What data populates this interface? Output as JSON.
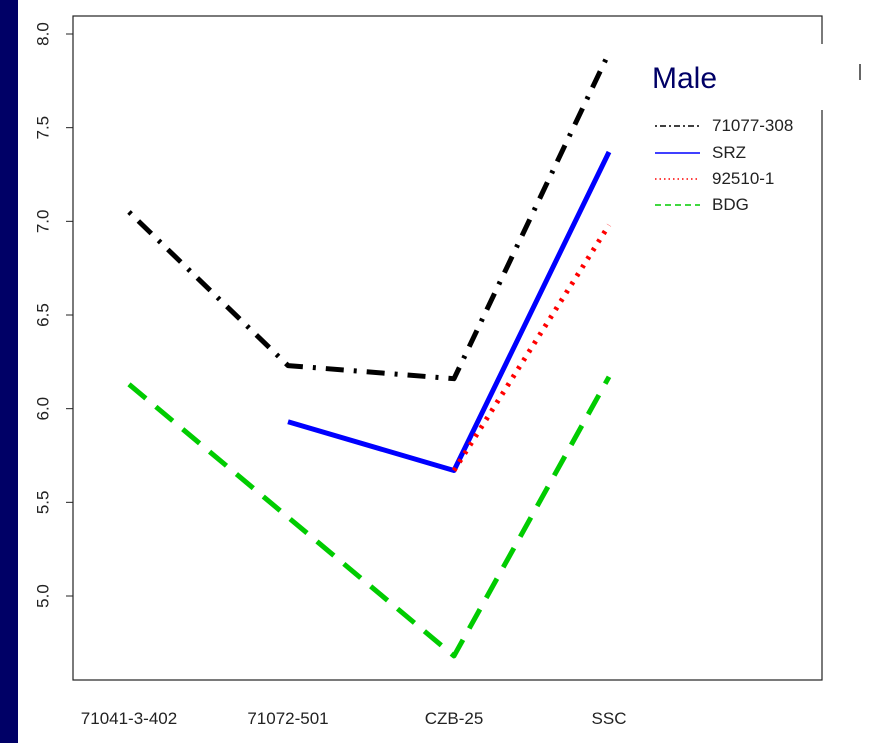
{
  "chart_data": {
    "type": "line",
    "title": "Male",
    "xlabel": "",
    "ylabel": "",
    "categories": [
      "71041-3-402",
      "71072-501",
      "CZB-25",
      "SSC"
    ],
    "y_ticks": [
      "5.0",
      "5.5",
      "6.0",
      "6.5",
      "7.0",
      "7.5",
      "8.0"
    ],
    "ylim": [
      4.6,
      8.05
    ],
    "grid": false,
    "legend_position": "top-right",
    "series": [
      {
        "name": "71077-308",
        "values": [
          7.05,
          6.23,
          6.16,
          7.9
        ],
        "color": "#000000",
        "dash": "dotdash"
      },
      {
        "name": "SRZ",
        "values": [
          null,
          5.93,
          5.67,
          7.37
        ],
        "color": "#0000ff",
        "dash": "solid"
      },
      {
        "name": "92510-1",
        "values": [
          null,
          null,
          5.67,
          6.98
        ],
        "color": "#ff0000",
        "dash": "dotted"
      },
      {
        "name": "BDG",
        "values": [
          6.13,
          null,
          4.68,
          6.17
        ],
        "color": "#00cc00",
        "dash": "dashed"
      }
    ]
  }
}
